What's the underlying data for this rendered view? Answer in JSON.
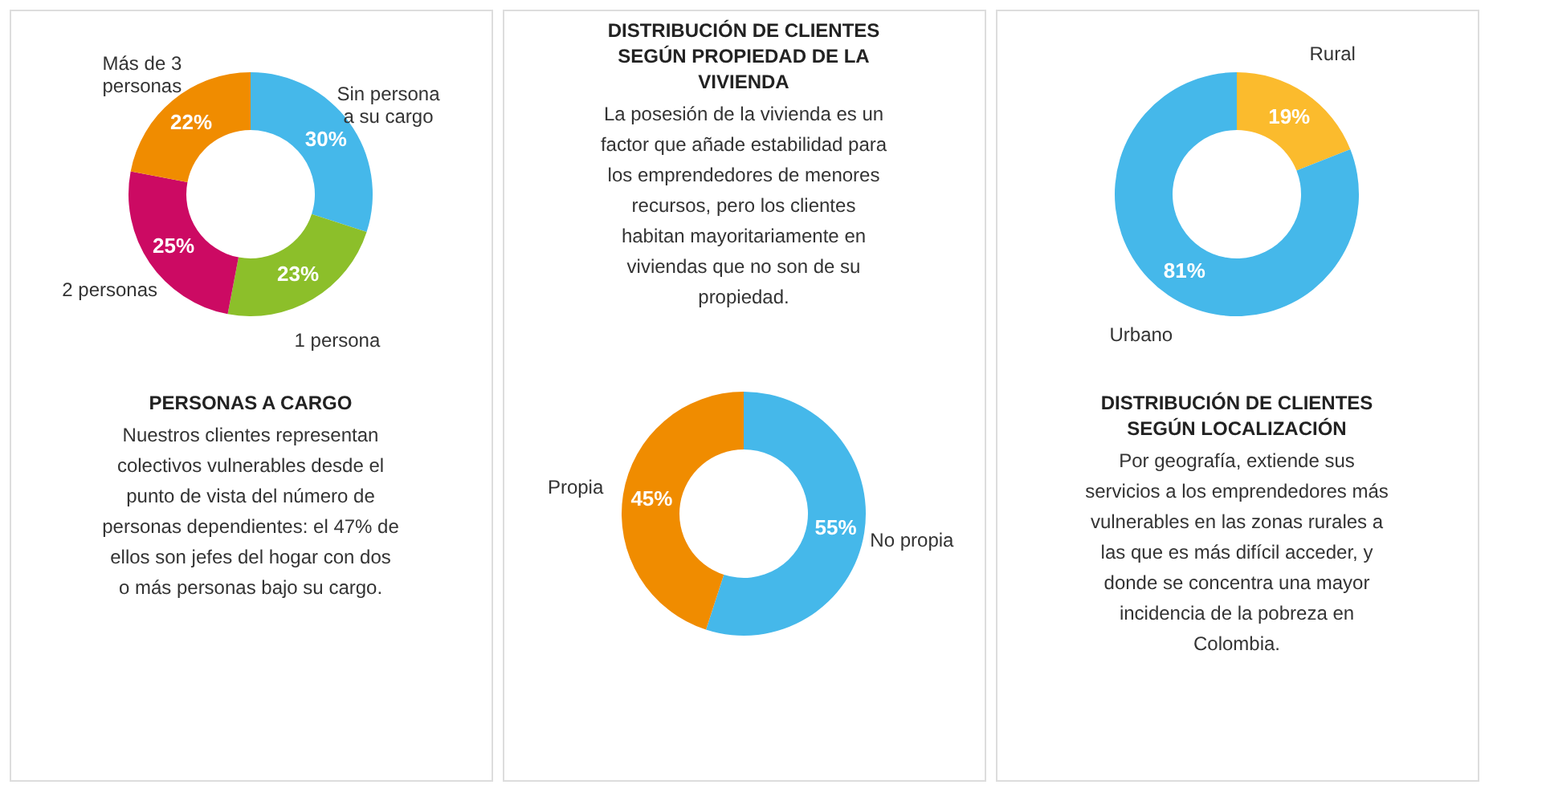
{
  "chart_data": [
    {
      "type": "donut",
      "title": "PERSONAS A CARGO",
      "subtitle": "Nuestros clientes representan colectivos vulnerables desde el punto de vista del número de personas dependientes: el 47% de ellos son jefes del hogar con dos o más personas bajo su cargo.",
      "categories": [
        "Sin persona a su cargo",
        "1 persona",
        "2 personas",
        "Más de 3 personas"
      ],
      "values": [
        30,
        23,
        25,
        22
      ],
      "value_labels": [
        "30%",
        "23%",
        "25%",
        "22%"
      ],
      "colors": [
        "#45b8ea",
        "#8cbf2a",
        "#cc0a63",
        "#f08c00"
      ],
      "legend": false
    },
    {
      "type": "donut",
      "title": "DISTRIBUCIÓN DE CLIENTES SEGÚN PROPIEDAD DE LA VIVIENDA",
      "subtitle": "La posesión de la vivienda es un factor que añade estabilidad para los emprendedores de menores recursos, pero los clientes habitan mayoritariamente en viviendas que no son de su propiedad.",
      "categories": [
        "No propia",
        "Propia"
      ],
      "values": [
        55,
        45
      ],
      "value_labels": [
        "55%",
        "45%"
      ],
      "colors": [
        "#45b8ea",
        "#f08c00"
      ],
      "legend": false
    },
    {
      "type": "donut",
      "title": "DISTRIBUCIÓN DE CLIENTES SEGÚN LOCALIZACIÓN",
      "subtitle": "Por geografía, extiende sus servicios a los emprendedores más vulnerables en las zonas rurales a las que es más difícil acceder, y donde se concentra una mayor incidencia de la pobreza en Colombia.",
      "categories": [
        "Rural",
        "Urbano"
      ],
      "values": [
        19,
        81
      ],
      "value_labels": [
        "19%",
        "81%"
      ],
      "colors": [
        "#fbbb2d",
        "#45b8ea"
      ],
      "legend": false
    }
  ]
}
